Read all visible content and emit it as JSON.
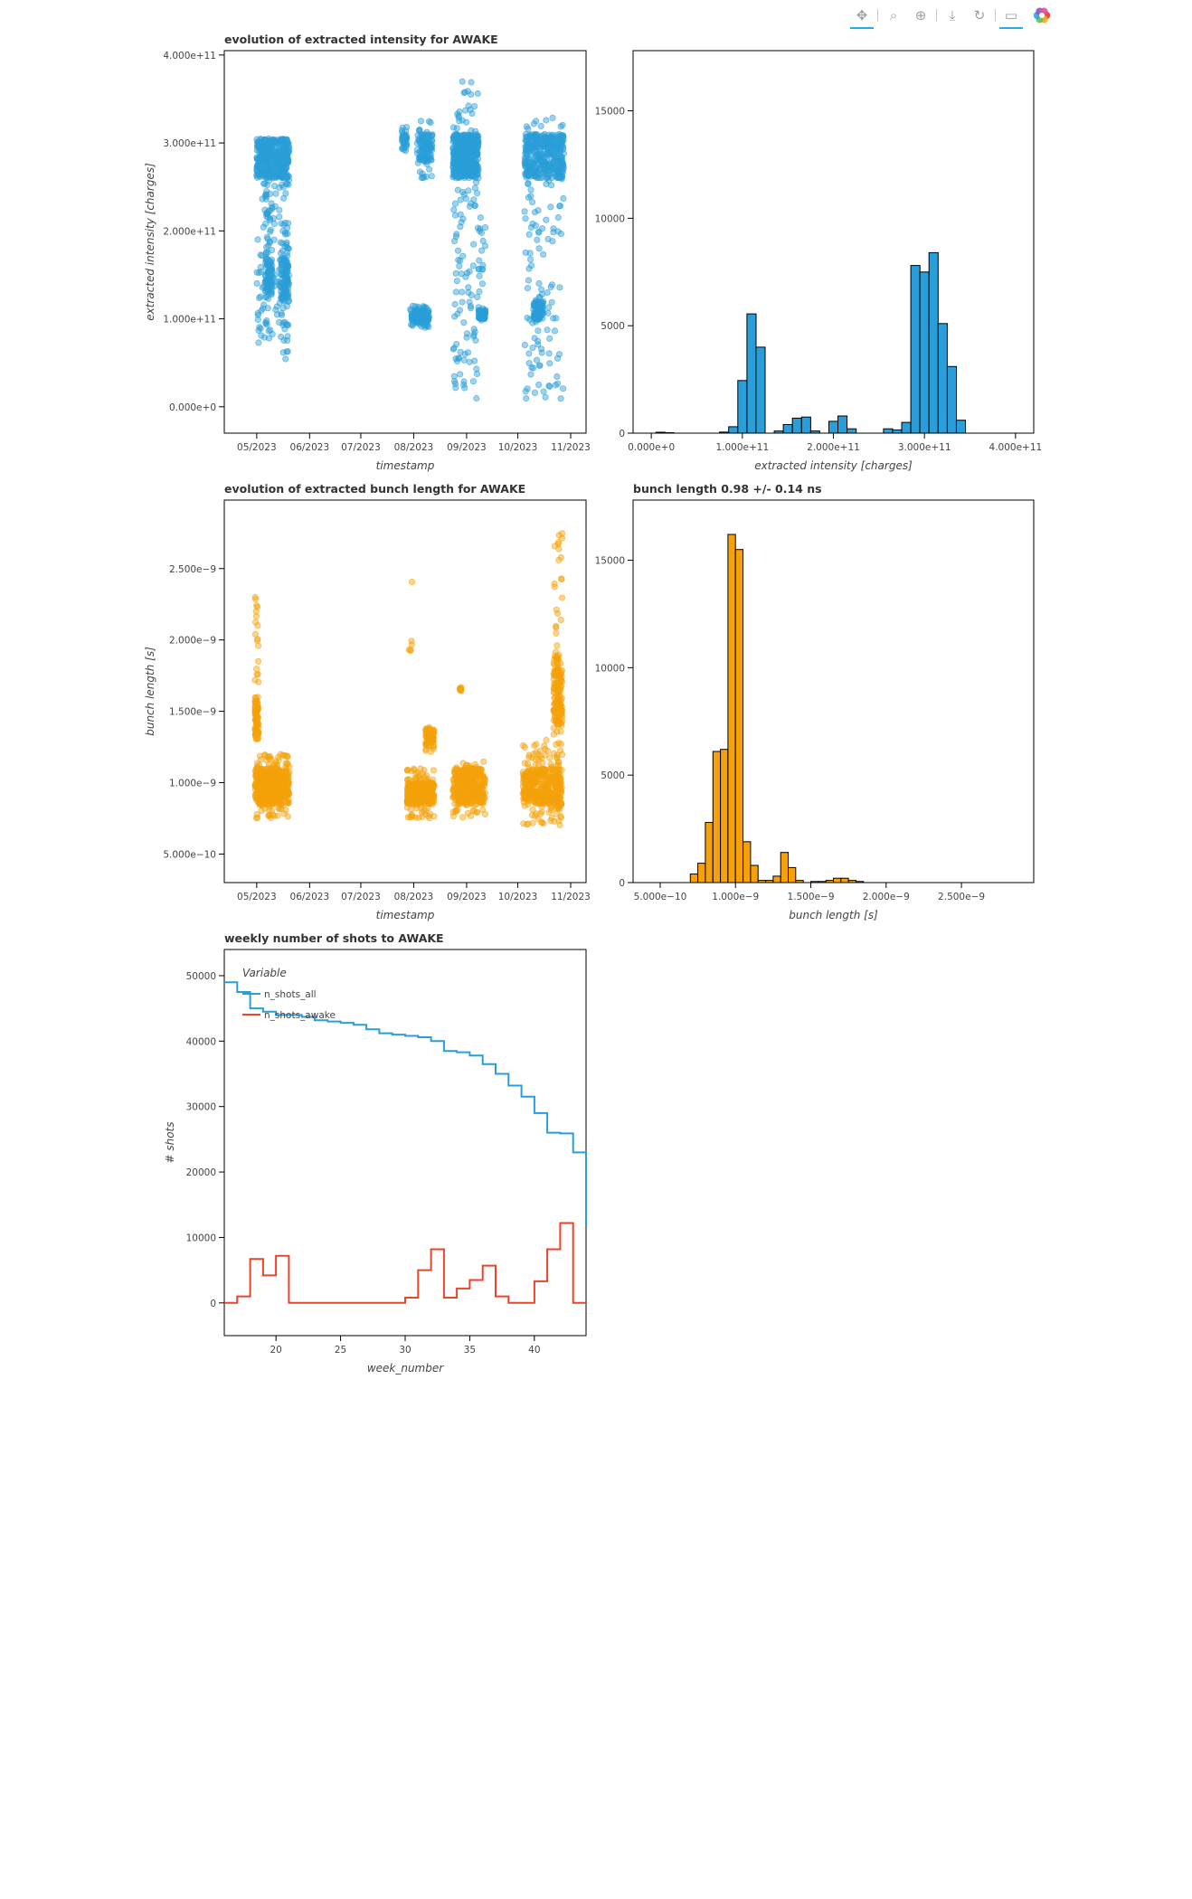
{
  "toolbar": {
    "tools": [
      {
        "name": "pan-tool",
        "icon": "pan-icon",
        "glyph": "✥",
        "active": true
      },
      {
        "name": "box-zoom-tool",
        "icon": "box-zoom-icon",
        "glyph": "⌕",
        "active": false
      },
      {
        "name": "wheel-zoom-tool",
        "icon": "wheel-zoom-icon",
        "glyph": "⊕",
        "active": false
      },
      {
        "name": "save-tool",
        "icon": "save-icon",
        "glyph": "⤓",
        "active": false
      },
      {
        "name": "reset-tool",
        "icon": "reset-icon",
        "glyph": "↻",
        "active": false
      },
      {
        "name": "hover-tool",
        "icon": "hover-icon",
        "glyph": "▭",
        "active": true
      }
    ],
    "logo_icon": "bokeh-logo-icon"
  },
  "chart_data": [
    {
      "type": "scatter",
      "title": "evolution of extracted intensity for AWAKE",
      "xlabel": "timestamp",
      "ylabel": "extracted intensity [charges]",
      "x_ticks": [
        "05/2023",
        "06/2023",
        "07/2023",
        "08/2023",
        "09/2023",
        "10/2023",
        "11/2023"
      ],
      "y_ticks": [
        "0.000e+0",
        "1.000e+11",
        "2.000e+11",
        "3.000e+11",
        "4.000e+11"
      ],
      "xlim": [
        "2023-04-12",
        "2023-11-10"
      ],
      "ylim": [
        -30000000000.0,
        405000000000.0
      ],
      "color": "#2a9ed8",
      "clusters": [
        {
          "x0": "2023-05-01",
          "x1": "2023-05-20",
          "y0": 70000000000.0,
          "y1": 305000000000.0,
          "dense": [
            260000000000.0,
            305000000000.0
          ],
          "n": 520
        },
        {
          "x0": "2023-05-06",
          "x1": "2023-05-10",
          "y0": 120000000000.0,
          "y1": 240000000000.0,
          "dense": [
            130000000000.0,
            170000000000.0
          ],
          "n": 80
        },
        {
          "x0": "2023-05-15",
          "x1": "2023-05-20",
          "y0": 50000000000.0,
          "y1": 210000000000.0,
          "dense": [
            120000000000.0,
            170000000000.0
          ],
          "n": 120
        },
        {
          "x0": "2023-07-25",
          "x1": "2023-07-28",
          "y0": 290000000000.0,
          "y1": 320000000000.0,
          "dense": [
            295000000000.0,
            310000000000.0
          ],
          "n": 40
        },
        {
          "x0": "2023-07-30",
          "x1": "2023-08-10",
          "y0": 90000000000.0,
          "y1": 115000000000.0,
          "dense": [
            95000000000.0,
            110000000000.0
          ],
          "n": 120
        },
        {
          "x0": "2023-08-03",
          "x1": "2023-08-12",
          "y0": 260000000000.0,
          "y1": 325000000000.0,
          "dense": [
            280000000000.0,
            310000000000.0
          ],
          "n": 120
        },
        {
          "x0": "2023-08-24",
          "x1": "2023-09-08",
          "y0": 8000000000.0,
          "y1": 370000000000.0,
          "dense": [
            260000000000.0,
            310000000000.0
          ],
          "n": 520
        },
        {
          "x0": "2023-09-08",
          "x1": "2023-09-12",
          "y0": 90000000000.0,
          "y1": 220000000000.0,
          "dense": [
            100000000000.0,
            110000000000.0
          ],
          "n": 80
        },
        {
          "x0": "2023-10-05",
          "x1": "2023-10-28",
          "y0": 8000000000.0,
          "y1": 330000000000.0,
          "dense": [
            260000000000.0,
            310000000000.0
          ],
          "n": 480
        },
        {
          "x0": "2023-10-10",
          "x1": "2023-10-16",
          "y0": 95000000000.0,
          "y1": 125000000000.0,
          "dense": [
            100000000000.0,
            120000000000.0
          ],
          "n": 80
        }
      ]
    },
    {
      "type": "bar",
      "title": "",
      "xlabel": "extracted intensity [charges]",
      "ylabel": "",
      "x_ticks": [
        "0.000e+0",
        "1.000e+11",
        "2.000e+11",
        "3.000e+11",
        "4.000e+11"
      ],
      "y_ticks": [
        "0",
        "5000",
        "10000",
        "15000"
      ],
      "xlim": [
        -20000000000.0,
        420000000000.0
      ],
      "ylim": [
        0,
        17800
      ],
      "color": "#2a9ed8",
      "bin_width": 10000000000.0,
      "bin_starts": [
        5000000000.0,
        15000000000.0,
        75000000000.0,
        85000000000.0,
        95000000000.0,
        105000000000.0,
        115000000000.0,
        135000000000.0,
        145000000000.0,
        155000000000.0,
        165000000000.0,
        175000000000.0,
        195000000000.0,
        205000000000.0,
        215000000000.0,
        255000000000.0,
        265000000000.0,
        275000000000.0,
        285000000000.0,
        295000000000.0,
        305000000000.0,
        315000000000.0,
        325000000000.0,
        335000000000.0
      ],
      "values": [
        40,
        20,
        50,
        300,
        2450,
        5550,
        4000,
        100,
        400,
        700,
        750,
        100,
        550,
        800,
        200,
        200,
        150,
        500,
        7800,
        7500,
        8400,
        5100,
        3100,
        600
      ]
    },
    {
      "type": "scatter",
      "title": "evolution of extracted bunch length for AWAKE",
      "xlabel": "timestamp",
      "ylabel": "bunch length [s]",
      "x_ticks": [
        "05/2023",
        "06/2023",
        "07/2023",
        "08/2023",
        "09/2023",
        "10/2023",
        "11/2023"
      ],
      "y_ticks": [
        "5.000e−10",
        "1.000e−9",
        "1.500e−9",
        "2.000e−9",
        "2.500e−9"
      ],
      "xlim": [
        "2023-04-12",
        "2023-11-10"
      ],
      "ylim": [
        3e-10,
        2.98e-09
      ],
      "color": "#f5a20a",
      "clusters": [
        {
          "x0": "2023-04-30",
          "x1": "2023-05-20",
          "y0": 7.5e-10,
          "y1": 1.2e-09,
          "dense": [
            8.5e-10,
            1.1e-09
          ],
          "n": 520
        },
        {
          "x0": "2023-04-30",
          "x1": "2023-05-02",
          "y0": 1.2e-09,
          "y1": 2.3e-09,
          "dense": [
            1.3e-09,
            1.6e-09
          ],
          "n": 100
        },
        {
          "x0": "2023-07-28",
          "x1": "2023-08-13",
          "y0": 7.5e-10,
          "y1": 1.1e-09,
          "dense": [
            8.5e-10,
            1e-09
          ],
          "n": 320
        },
        {
          "x0": "2023-08-08",
          "x1": "2023-08-13",
          "y0": 1.2e-09,
          "y1": 1.4e-09,
          "dense": [
            1.25e-09,
            1.38e-09
          ],
          "n": 80
        },
        {
          "x0": "2023-07-29",
          "x1": "2023-07-31",
          "y0": 1.6e-09,
          "y1": 2.6e-09,
          "dense": [
            1.9e-09,
            2e-09
          ],
          "n": 6
        },
        {
          "x0": "2023-08-24",
          "x1": "2023-09-12",
          "y0": 7.5e-10,
          "y1": 1.15e-09,
          "dense": [
            8.5e-10,
            1.1e-09
          ],
          "n": 340
        },
        {
          "x0": "2023-08-28",
          "x1": "2023-08-29",
          "y0": 1.63e-09,
          "y1": 1.68e-09,
          "dense": [
            1.64e-09,
            1.67e-09
          ],
          "n": 8
        },
        {
          "x0": "2023-10-04",
          "x1": "2023-10-27",
          "y0": 7e-10,
          "y1": 1.3e-09,
          "dense": [
            8.5e-10,
            1.1e-09
          ],
          "n": 420
        },
        {
          "x0": "2023-10-22",
          "x1": "2023-10-27",
          "y0": 1e-09,
          "y1": 2.8e-09,
          "dense": [
            1.4e-09,
            1.9e-09
          ],
          "n": 180
        }
      ]
    },
    {
      "type": "bar",
      "title": "bunch length 0.98 +/- 0.14 ns",
      "xlabel": "bunch length [s]",
      "ylabel": "",
      "x_ticks": [
        "5.000e−10",
        "1.000e−9",
        "1.500e−9",
        "2.000e−9",
        "2.500e−9"
      ],
      "y_ticks": [
        "0",
        "5000",
        "10000",
        "15000"
      ],
      "xlim": [
        3.2e-10,
        2.98e-09
      ],
      "ylim": [
        0,
        17800
      ],
      "color": "#f5a20a",
      "bin_width": 5e-11,
      "bin_starts": [
        7e-10,
        7.5e-10,
        8e-10,
        8.5e-10,
        9e-10,
        9.5e-10,
        1e-09,
        1.05e-09,
        1.1e-09,
        1.15e-09,
        1.2e-09,
        1.25e-09,
        1.3e-09,
        1.35e-09,
        1.4e-09,
        1.5e-09,
        1.55e-09,
        1.6e-09,
        1.65e-09,
        1.7e-09,
        1.75e-09,
        1.8e-09
      ],
      "values": [
        400,
        900,
        2800,
        6100,
        6200,
        16200,
        15500,
        1900,
        800,
        100,
        100,
        300,
        1400,
        700,
        100,
        50,
        50,
        100,
        200,
        200,
        100,
        50
      ]
    },
    {
      "type": "line",
      "title": "weekly number of shots to AWAKE",
      "xlabel": "week_number",
      "ylabel": "# shots",
      "x_ticks": [
        "20",
        "25",
        "30",
        "35",
        "40"
      ],
      "y_ticks": [
        "0",
        "10000",
        "20000",
        "30000",
        "40000",
        "50000"
      ],
      "xlim": [
        16,
        44
      ],
      "ylim": [
        -5000,
        54000
      ],
      "legend": {
        "title": "Variable",
        "position": "top-left"
      },
      "series": [
        {
          "name": "n_shots_all",
          "color": "#2a9ed8",
          "x": [
            16,
            17,
            18,
            19,
            20,
            21,
            22,
            23,
            24,
            25,
            26,
            27,
            28,
            29,
            30,
            31,
            32,
            33,
            34,
            35,
            36,
            37,
            38,
            39,
            40,
            41,
            42,
            43,
            44
          ],
          "y": [
            49000,
            47500,
            45000,
            44500,
            44000,
            44000,
            43700,
            43200,
            43000,
            42800,
            42500,
            41800,
            41200,
            41000,
            40800,
            40600,
            40000,
            38500,
            38300,
            37800,
            36500,
            35000,
            33200,
            31500,
            29000,
            26000,
            25900,
            23000,
            11800
          ]
        },
        {
          "name": "n_shots_awake",
          "color": "#e8452a",
          "x": [
            16,
            17,
            18,
            19,
            20,
            21,
            22,
            23,
            24,
            25,
            26,
            27,
            28,
            29,
            30,
            31,
            32,
            33,
            34,
            35,
            36,
            37,
            38,
            39,
            40,
            41,
            42,
            43,
            44
          ],
          "y": [
            0,
            1000,
            6700,
            4200,
            7200,
            0,
            0,
            0,
            0,
            0,
            0,
            0,
            0,
            0,
            800,
            5000,
            8200,
            800,
            2200,
            3500,
            5700,
            1000,
            0,
            0,
            3300,
            8200,
            12200,
            0,
            0
          ]
        }
      ]
    }
  ]
}
